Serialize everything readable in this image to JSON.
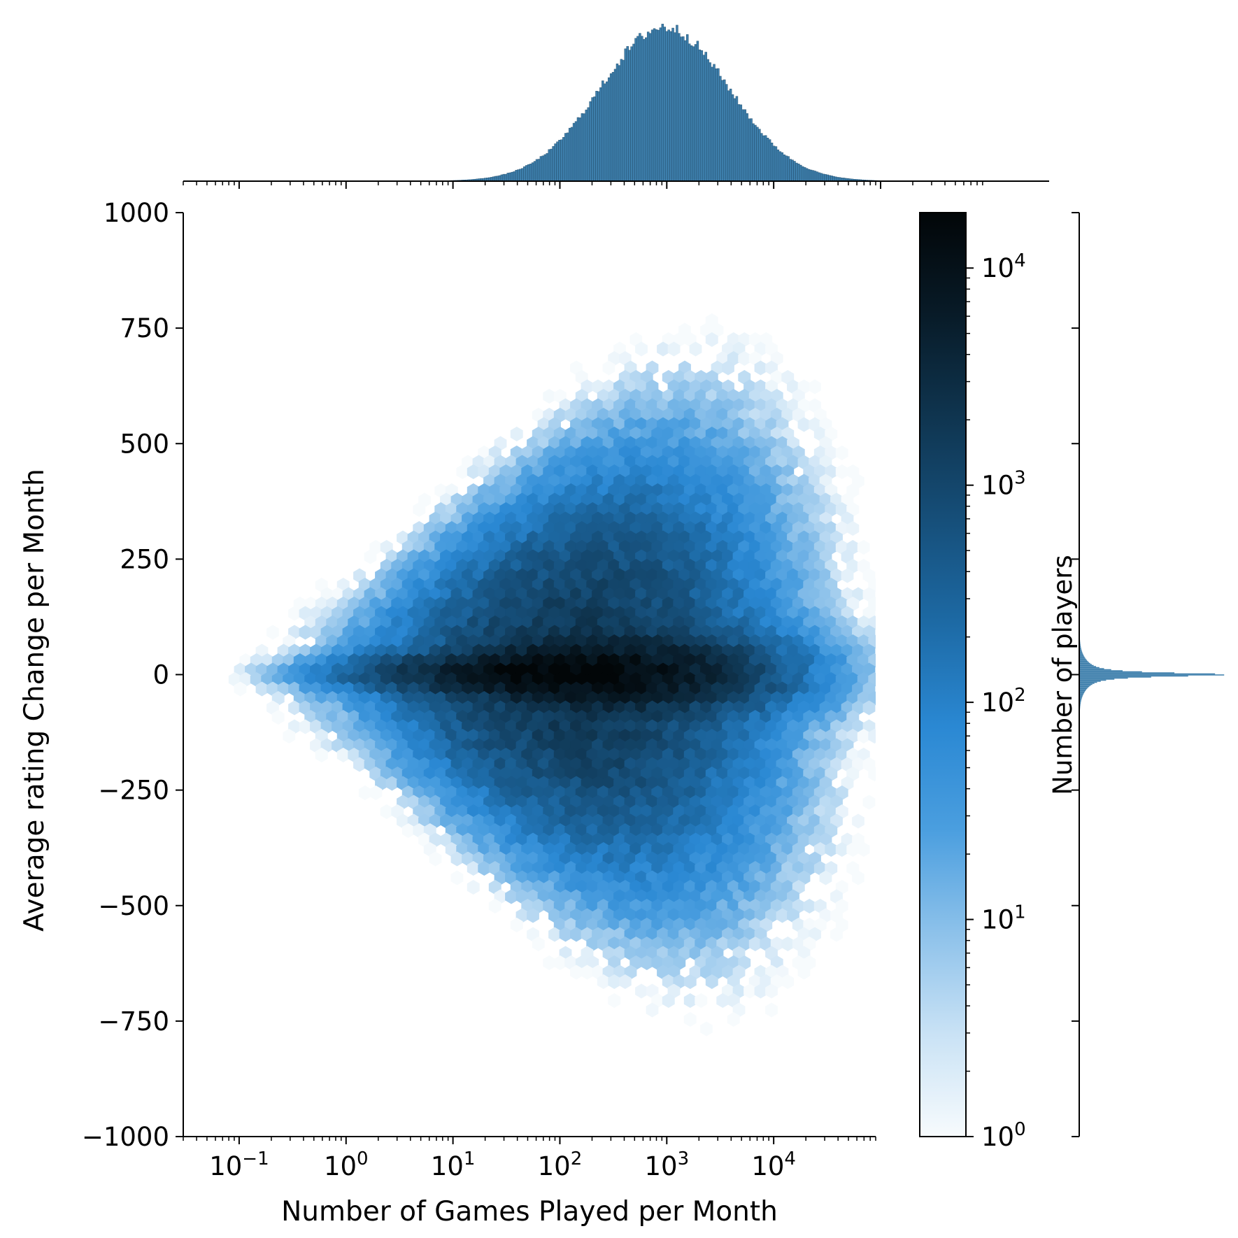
{
  "chart_data": {
    "type": "heatmap",
    "subtype": "hexbin jointplot with marginal histograms",
    "xlabel": "Number of Games Played per Month",
    "ylabel": "Average rating  Change per Month",
    "x_scale": "log",
    "xlim": [
      0.03,
      90000
    ],
    "ylim": [
      -1000,
      1000
    ],
    "x_ticks": [
      {
        "value": 0.1,
        "label": "10",
        "exp": "−1"
      },
      {
        "value": 1,
        "label": "10",
        "exp": "0"
      },
      {
        "value": 10,
        "label": "10",
        "exp": "1"
      },
      {
        "value": 100,
        "label": "10",
        "exp": "2"
      },
      {
        "value": 1000,
        "label": "10",
        "exp": "3"
      },
      {
        "value": 10000,
        "label": "10",
        "exp": "4"
      }
    ],
    "y_ticks": [
      {
        "value": 1000,
        "label": "1000"
      },
      {
        "value": 750,
        "label": "750"
      },
      {
        "value": 500,
        "label": "500"
      },
      {
        "value": 250,
        "label": "250"
      },
      {
        "value": 0,
        "label": "0"
      },
      {
        "value": -250,
        "label": "−250"
      },
      {
        "value": -500,
        "label": "−500"
      },
      {
        "value": -750,
        "label": "−750"
      },
      {
        "value": -1000,
        "label": "−1000"
      }
    ],
    "colorbar": {
      "label": "Number of players",
      "scale": "log",
      "range": [
        1,
        18000
      ],
      "ticks": [
        {
          "value": 1,
          "label": "10",
          "exp": "0"
        },
        {
          "value": 10,
          "label": "10",
          "exp": "1"
        },
        {
          "value": 100,
          "label": "10",
          "exp": "2"
        },
        {
          "value": 1000,
          "label": "10",
          "exp": "3"
        },
        {
          "value": 10000,
          "label": "10",
          "exp": "4"
        }
      ],
      "colors": [
        "#f7fbfd",
        "#c9e2f5",
        "#8cc1ea",
        "#4a9edf",
        "#2a88d3",
        "#1d6aa5",
        "#164f7a",
        "#0f3550",
        "#081b28",
        "#020608"
      ]
    },
    "density": {
      "center_log10x": 2.1,
      "sigma_log10x": 0.72,
      "peak_count": 18000,
      "y_spread_core": 22,
      "y_spread_wide": 130,
      "wide_fraction": 0.12
    },
    "top_marginal": {
      "description": "histogram of games per month (log x)",
      "peak_log10x": 2.98,
      "sigma_log10x": 0.6,
      "color": "#3d7eab"
    },
    "right_marginal": {
      "description": "histogram of rating change",
      "peak_y": 0,
      "color": "#3d7eab"
    },
    "colors": {
      "bar_fill": "#3d7eab",
      "bar_edge": "#24506f"
    }
  }
}
